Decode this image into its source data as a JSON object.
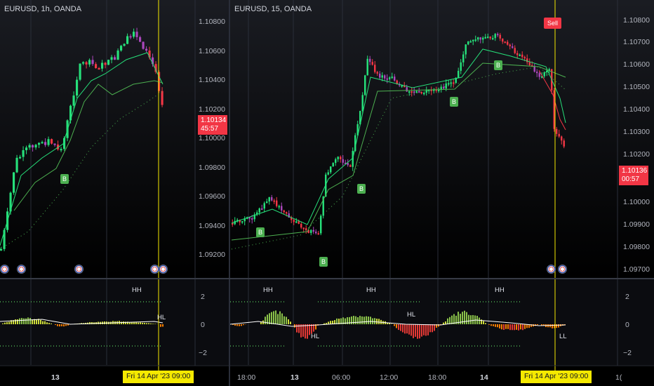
{
  "left_chart": {
    "title": "EURUSD, 1h, OANDA",
    "price_ticks": [
      "1.10800",
      "1.10600",
      "1.10400",
      "1.10200",
      "1.10000",
      "1.09800",
      "1.09600",
      "1.09400",
      "1.09200"
    ],
    "price_tag": {
      "price": "1.10134",
      "countdown": "45:57"
    },
    "indicator_ticks": [
      "2",
      "0",
      "−2"
    ],
    "time_labels": [
      "13"
    ],
    "crosshair_time": "Fri 14 Apr '23   09:00",
    "signals": [
      "B"
    ],
    "swing_labels": [
      "HH",
      "HL"
    ]
  },
  "right_chart": {
    "title": "EURUSD, 15, OANDA",
    "price_ticks": [
      "1.10800",
      "1.10700",
      "1.10600",
      "1.10500",
      "1.10400",
      "1.10300",
      "1.10200",
      "1.10100",
      "1.10000",
      "1.09900",
      "1.09800",
      "1.09700"
    ],
    "price_tag": {
      "price": "1.10136",
      "countdown": "00:57"
    },
    "indicator_ticks": [
      "2",
      "0",
      "−2"
    ],
    "time_labels": [
      "18:00",
      "13",
      "06:00",
      "12:00",
      "18:00",
      "14",
      "1("
    ],
    "crosshair_time": "Fri 14 Apr '23   09:00",
    "sell_label": "Sell",
    "signals": [
      "B",
      "B",
      "B",
      "B",
      "B"
    ],
    "swing_labels": [
      "HH",
      "HH",
      "HH",
      "HL",
      "HL",
      "LL"
    ]
  },
  "colors": {
    "bull": "#26e07a",
    "bear": "#f23645",
    "neutral": "#ab47bc",
    "crosshair": "#f5e900",
    "tag": "#f23645"
  }
}
